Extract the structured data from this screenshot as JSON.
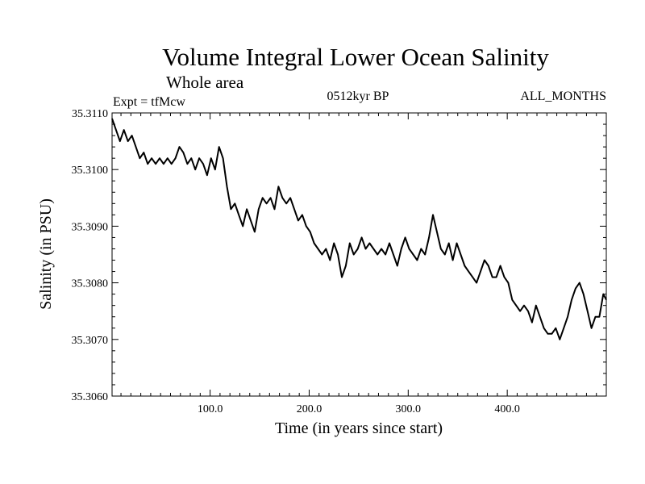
{
  "chart_data": {
    "type": "line",
    "title": "Volume Integral Lower Ocean Salinity",
    "subtitle": "Whole area",
    "annotations": {
      "experiment": "Expt = tfMcw",
      "period": "0512kyr BP",
      "months": "ALL_MONTHS"
    },
    "xlabel": "Time (in years since start)",
    "ylabel": "Salinity (in PSU)",
    "xlim": [
      1,
      500
    ],
    "ylim": [
      35.306,
      35.311
    ],
    "xticks": [
      100,
      200,
      300,
      400
    ],
    "xtick_labels": [
      "100.0",
      "200.0",
      "300.0",
      "400.0"
    ],
    "yticks": [
      35.306,
      35.307,
      35.308,
      35.309,
      35.31,
      35.311
    ],
    "ytick_labels": [
      "35.3060",
      "35.3070",
      "35.3080",
      "35.3090",
      "35.3100",
      "35.3110"
    ],
    "grid": false,
    "series": [
      {
        "name": "Salinity",
        "x": [
          1,
          5,
          9,
          13,
          17,
          21,
          25,
          29,
          33,
          37,
          41,
          45,
          49,
          53,
          57,
          61,
          65,
          69,
          73,
          77,
          81,
          85,
          89,
          93,
          97,
          101,
          105,
          109,
          113,
          117,
          121,
          125,
          129,
          133,
          137,
          141,
          145,
          149,
          153,
          157,
          161,
          165,
          169,
          173,
          177,
          181,
          185,
          189,
          193,
          197,
          201,
          205,
          209,
          213,
          217,
          221,
          225,
          229,
          233,
          237,
          241,
          245,
          249,
          253,
          257,
          261,
          265,
          269,
          273,
          277,
          281,
          285,
          289,
          293,
          297,
          301,
          305,
          309,
          313,
          317,
          321,
          325,
          329,
          333,
          337,
          341,
          345,
          349,
          353,
          357,
          361,
          365,
          369,
          373,
          377,
          381,
          385,
          389,
          393,
          397,
          401,
          405,
          409,
          413,
          417,
          421,
          425,
          429,
          433,
          437,
          441,
          445,
          449,
          453,
          457,
          461,
          465,
          469,
          473,
          477,
          481,
          485,
          489,
          493,
          497,
          500
        ],
        "values": [
          35.3109,
          35.3107,
          35.3105,
          35.3107,
          35.3105,
          35.3106,
          35.3104,
          35.3102,
          35.3103,
          35.3101,
          35.3102,
          35.3101,
          35.3102,
          35.3101,
          35.3102,
          35.3101,
          35.3102,
          35.3104,
          35.3103,
          35.3101,
          35.3102,
          35.31,
          35.3102,
          35.3101,
          35.3099,
          35.3102,
          35.31,
          35.3104,
          35.3102,
          35.3097,
          35.3093,
          35.3094,
          35.3092,
          35.309,
          35.3093,
          35.3091,
          35.3089,
          35.3093,
          35.3095,
          35.3094,
          35.3095,
          35.3093,
          35.3097,
          35.3095,
          35.3094,
          35.3095,
          35.3093,
          35.3091,
          35.3092,
          35.309,
          35.3089,
          35.3087,
          35.3086,
          35.3085,
          35.3086,
          35.3084,
          35.3087,
          35.3085,
          35.3081,
          35.3083,
          35.3087,
          35.3085,
          35.3086,
          35.3088,
          35.3086,
          35.3087,
          35.3086,
          35.3085,
          35.3086,
          35.3085,
          35.3087,
          35.3085,
          35.3083,
          35.3086,
          35.3088,
          35.3086,
          35.3085,
          35.3084,
          35.3086,
          35.3085,
          35.3088,
          35.3092,
          35.3089,
          35.3086,
          35.3085,
          35.3087,
          35.3084,
          35.3087,
          35.3085,
          35.3083,
          35.3082,
          35.3081,
          35.308,
          35.3082,
          35.3084,
          35.3083,
          35.3081,
          35.3081,
          35.3083,
          35.3081,
          35.308,
          35.3077,
          35.3076,
          35.3075,
          35.3076,
          35.3075,
          35.3073,
          35.3076,
          35.3074,
          35.3072,
          35.3071,
          35.3071,
          35.3072,
          35.307,
          35.3072,
          35.3074,
          35.3077,
          35.3079,
          35.308,
          35.3078,
          35.3075,
          35.3072,
          35.3074,
          35.3074,
          35.3078,
          35.3077
        ]
      }
    ]
  },
  "colors": {
    "line": "#000000",
    "background": "#ffffff"
  }
}
